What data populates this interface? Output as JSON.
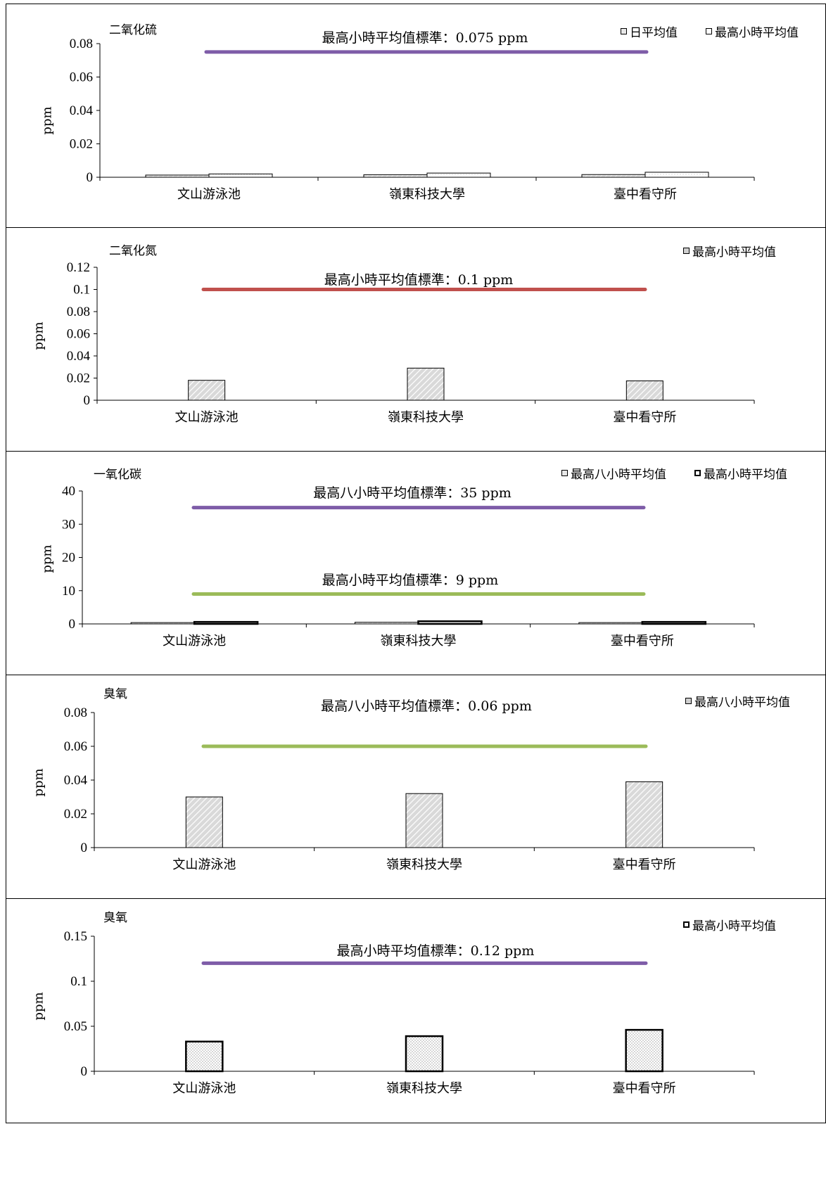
{
  "colors": {
    "purple": "#7e5ca8",
    "red": "#c0504d",
    "green": "#9bbb59",
    "hatch_fill": "#d9d9d9"
  },
  "chart_data": [
    {
      "type": "bar",
      "title": "二氧化硫",
      "ylabel": "ppm",
      "categories": [
        "文山游泳池",
        "嶺東科技大學",
        "臺中看守所"
      ],
      "ylim": [
        0,
        0.08
      ],
      "yticks": [
        "0",
        "0.02",
        "0.04",
        "0.06",
        "0.08"
      ],
      "series": [
        {
          "name": "日平均值",
          "values": [
            0.0013,
            0.0015,
            0.0016
          ],
          "pattern": "hatch-light"
        },
        {
          "name": "最高小時平均值",
          "values": [
            0.002,
            0.0025,
            0.003
          ],
          "pattern": "dots-light"
        }
      ],
      "standards": [
        {
          "label": "最高小時平均值標準：0.075 ppm",
          "value": 0.075,
          "color": "#7e5ca8"
        }
      ],
      "legend": "top-right"
    },
    {
      "type": "bar",
      "title": "二氧化氮",
      "ylabel": "ppm",
      "categories": [
        "文山游泳池",
        "嶺東科技大學",
        "臺中看守所"
      ],
      "ylim": [
        0,
        0.12
      ],
      "yticks": [
        "0",
        "0.02",
        "0.04",
        "0.06",
        "0.08",
        "0.1",
        "0.12"
      ],
      "series": [
        {
          "name": "最高小時平均值",
          "values": [
            0.018,
            0.029,
            0.0175
          ],
          "pattern": "hatch"
        }
      ],
      "standards": [
        {
          "label": "最高小時平均值標準：0.1 ppm",
          "value": 0.1,
          "color": "#c0504d"
        }
      ],
      "legend": "top-right"
    },
    {
      "type": "bar",
      "title": "一氧化碳",
      "ylabel": "ppm",
      "categories": [
        "文山游泳池",
        "嶺東科技大學",
        "臺中看守所"
      ],
      "ylim": [
        0,
        40
      ],
      "yticks": [
        "0",
        "10",
        "20",
        "30",
        "40"
      ],
      "series": [
        {
          "name": "最高八小時平均值",
          "values": [
            0.4,
            0.5,
            0.4
          ],
          "pattern": "hatch-light"
        },
        {
          "name": "最高小時平均值",
          "values": [
            0.6,
            0.8,
            0.6
          ],
          "pattern": "bold-outline"
        }
      ],
      "standards": [
        {
          "label": "最高八小時平均值標準：35 ppm",
          "value": 35,
          "color": "#7e5ca8"
        },
        {
          "label": "最高小時平均值標準：9 ppm",
          "value": 9,
          "color": "#9bbb59"
        }
      ],
      "legend": "top-right"
    },
    {
      "type": "bar",
      "title": "臭氧",
      "ylabel": "ppm",
      "categories": [
        "文山游泳池",
        "嶺東科技大學",
        "臺中看守所"
      ],
      "ylim": [
        0,
        0.08
      ],
      "yticks": [
        "0",
        "0.02",
        "0.04",
        "0.06",
        "0.08"
      ],
      "series": [
        {
          "name": "最高八小時平均值",
          "values": [
            0.03,
            0.032,
            0.039
          ],
          "pattern": "hatch"
        }
      ],
      "standards": [
        {
          "label": "最高八小時平均值標準：0.06 ppm",
          "value": 0.06,
          "color": "#9bbb59"
        }
      ],
      "legend": "top-right"
    },
    {
      "type": "bar",
      "title": "臭氧",
      "ylabel": "ppm",
      "categories": [
        "文山游泳池",
        "嶺東科技大學",
        "臺中看守所"
      ],
      "ylim": [
        0,
        0.15
      ],
      "yticks": [
        "0",
        "0.05",
        "0.1",
        "0.15"
      ],
      "series": [
        {
          "name": "最高小時平均值",
          "values": [
            0.033,
            0.039,
            0.046
          ],
          "pattern": "dots"
        }
      ],
      "standards": [
        {
          "label": "最高小時平均值標準：0.12 ppm",
          "value": 0.12,
          "color": "#7e5ca8"
        }
      ],
      "legend": "top-right"
    }
  ]
}
